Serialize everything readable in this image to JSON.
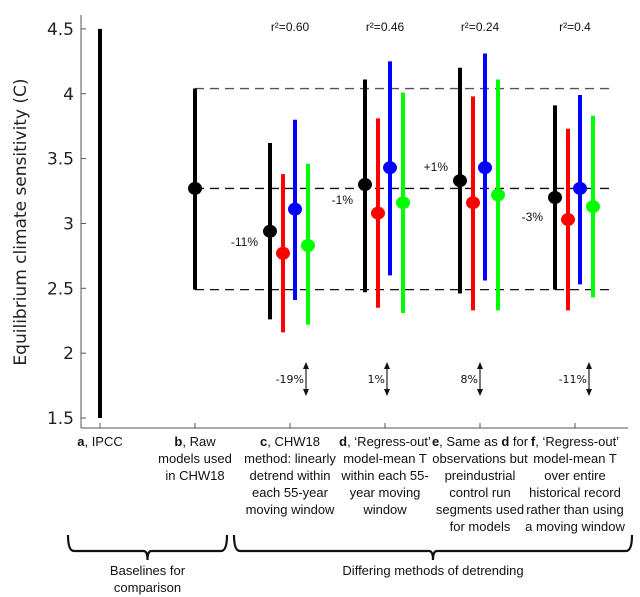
{
  "chart_data": {
    "type": "errorbar",
    "ylabel": "Equilibrium climate sensitivity (C)",
    "ylim": [
      1.5,
      4.5
    ],
    "yticks": [
      "1.5",
      "2",
      "2.5",
      "3",
      "3.5",
      "4",
      "4.5"
    ],
    "reference_lines": [
      4.04,
      3.27,
      2.49
    ],
    "categories": [
      {
        "letter": "a",
        "lines": [
          ", IPCC"
        ]
      },
      {
        "letter": "b",
        "lines": [
          ", Raw",
          "models used",
          "in CHW18"
        ]
      },
      {
        "letter": "c",
        "lines": [
          ", CHW18",
          "method: linearly",
          "detrend within",
          "each 55-year",
          "moving window"
        ]
      },
      {
        "letter": "d",
        "lines": [
          ", ‘Regress-out’",
          "model-mean T",
          "within each 55-",
          "year moving",
          "window"
        ]
      },
      {
        "letter": "e",
        "lines": [
          ", Same as ",
          "observations but",
          "preindustrial",
          "control run",
          "segments used",
          "for models"
        ],
        "bold_inline": "d",
        "inline_suffix": " for"
      },
      {
        "letter": "f",
        "lines": [
          ", ‘Regress-out’",
          "model-mean T",
          "over entire",
          "historical record",
          "rather than using",
          "a moving window"
        ]
      }
    ],
    "series_colors": [
      "#000000",
      "#ff0000",
      "#0000ff",
      "#00ff00"
    ],
    "groups": [
      {
        "category": 0,
        "bars": [
          {
            "color": "#000000",
            "low": 1.5,
            "high": 4.5,
            "mid": null
          }
        ]
      },
      {
        "category": 1,
        "bars": [
          {
            "color": "#000000",
            "low": 2.49,
            "high": 4.04,
            "mid": 3.27
          }
        ]
      },
      {
        "category": 2,
        "r2": "r²=0.60",
        "change": "-11%",
        "spread_change": "-19%",
        "bars": [
          {
            "color": "#000000",
            "low": 2.26,
            "high": 3.62,
            "mid": 2.94
          },
          {
            "color": "#ff0000",
            "low": 2.16,
            "high": 3.38,
            "mid": 2.77
          },
          {
            "color": "#0000ff",
            "low": 2.41,
            "high": 3.8,
            "mid": 3.11
          },
          {
            "color": "#00ff00",
            "low": 2.22,
            "high": 3.46,
            "mid": 2.83
          }
        ]
      },
      {
        "category": 3,
        "r2": "r²=0.46",
        "change": "-1%",
        "spread_change": "1%",
        "bars": [
          {
            "color": "#000000",
            "low": 2.47,
            "high": 4.11,
            "mid": 3.3
          },
          {
            "color": "#ff0000",
            "low": 2.35,
            "high": 3.81,
            "mid": 3.08
          },
          {
            "color": "#0000ff",
            "low": 2.6,
            "high": 4.25,
            "mid": 3.43
          },
          {
            "color": "#00ff00",
            "low": 2.31,
            "high": 4.01,
            "mid": 3.16
          }
        ]
      },
      {
        "category": 4,
        "r2": "r²=0.24",
        "change": "+1%",
        "spread_change": "8%",
        "bars": [
          {
            "color": "#000000",
            "low": 2.46,
            "high": 4.2,
            "mid": 3.33
          },
          {
            "color": "#ff0000",
            "low": 2.33,
            "high": 3.98,
            "mid": 3.16
          },
          {
            "color": "#0000ff",
            "low": 2.56,
            "high": 4.31,
            "mid": 3.43
          },
          {
            "color": "#00ff00",
            "low": 2.33,
            "high": 4.11,
            "mid": 3.22
          }
        ]
      },
      {
        "category": 5,
        "r2": "r²=0.4",
        "change": "-3%",
        "spread_change": "-11%",
        "bars": [
          {
            "color": "#000000",
            "low": 2.49,
            "high": 3.91,
            "mid": 3.2
          },
          {
            "color": "#ff0000",
            "low": 2.33,
            "high": 3.73,
            "mid": 3.03
          },
          {
            "color": "#0000ff",
            "low": 2.53,
            "high": 3.99,
            "mid": 3.27
          },
          {
            "color": "#00ff00",
            "low": 2.43,
            "high": 3.83,
            "mid": 3.13
          }
        ]
      }
    ],
    "brackets": [
      {
        "lines": [
          "Baselines for",
          "comparison"
        ],
        "from": 0,
        "to": 1
      },
      {
        "lines": [
          "Differing methods of detrending"
        ],
        "from": 2,
        "to": 5
      }
    ]
  }
}
